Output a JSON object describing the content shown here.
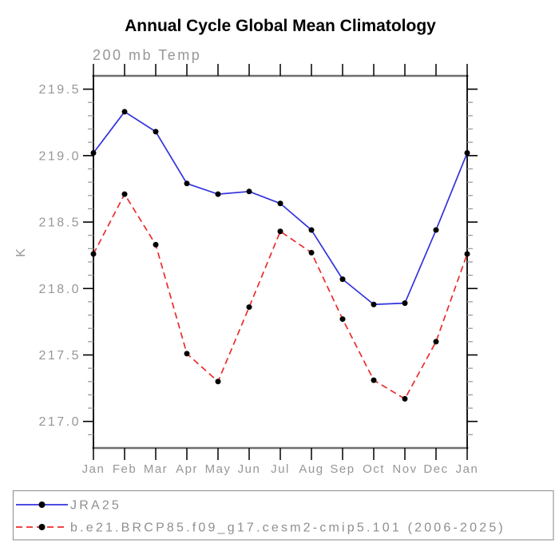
{
  "header": {
    "title": "Annual Cycle Global Mean Climatology",
    "subtitle": "200 mb Temp"
  },
  "chart_data": {
    "type": "line",
    "title": "Annual Cycle Global Mean Climatology",
    "subtitle": "200 mb Temp",
    "xlabel": "",
    "ylabel": "K",
    "categories": [
      "Jan",
      "Feb",
      "Mar",
      "Apr",
      "May",
      "Jun",
      "Jul",
      "Aug",
      "Sep",
      "Oct",
      "Nov",
      "Dec",
      "Jan"
    ],
    "series": [
      {
        "name": "JRA25",
        "color": "#3232dd",
        "line_style": "solid",
        "marker": "filled-circle",
        "marker_color": "#000000",
        "values": [
          219.02,
          219.33,
          219.18,
          218.79,
          218.71,
          218.73,
          218.64,
          218.44,
          218.07,
          217.88,
          217.89,
          218.44,
          219.02
        ]
      },
      {
        "name": "b.e21.BRCP85.f09_g17.cesm2-cmip5.101 (2006-2025)",
        "color": "#ea2c2c",
        "line_style": "dashed",
        "marker": "filled-circle",
        "marker_color": "#000000",
        "values": [
          218.26,
          218.71,
          218.33,
          217.51,
          217.3,
          217.86,
          218.43,
          218.27,
          217.77,
          217.31,
          217.17,
          217.6,
          218.26
        ]
      }
    ],
    "ylim": [
      216.8,
      219.6
    ],
    "y_major_ticks": [
      217.0,
      217.5,
      218.0,
      218.5,
      219.0,
      219.5
    ],
    "y_minor_step": 0.1,
    "grid": false,
    "legend_position": "bottom-box",
    "colors": {
      "axis": "#000000",
      "frame_horizontal": "#6f6f6f",
      "minor_tick": "#9c9c9c",
      "label_gray": "#979797",
      "legend_border": "#999999"
    }
  }
}
